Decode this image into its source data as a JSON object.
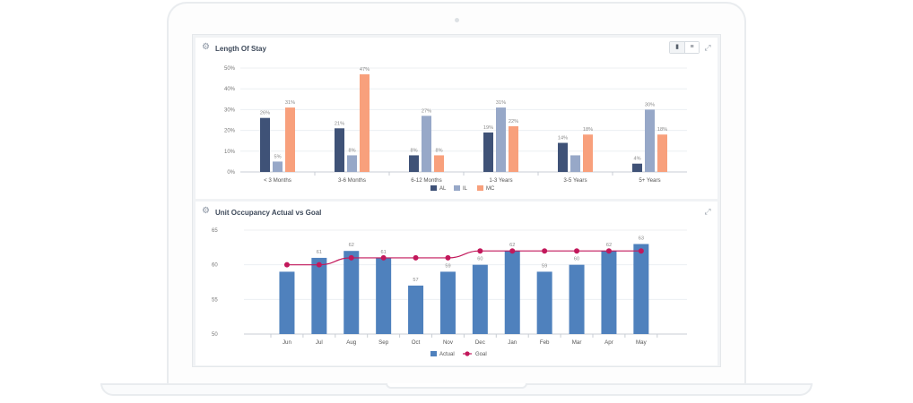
{
  "chart_data": [
    {
      "type": "bar",
      "title": "Length Of Stay",
      "categories": [
        "< 3 Months",
        "3-6 Months",
        "6-12 Months",
        "1-3 Years",
        "3-5 Years",
        "5+ Years"
      ],
      "series": [
        {
          "name": "AL",
          "values": [
            26,
            21,
            8,
            19,
            14,
            4
          ],
          "labels": [
            "26%",
            "21%",
            "8%",
            "19%",
            "14%",
            "4%"
          ],
          "color": "#3f5277"
        },
        {
          "name": "IL",
          "values": [
            5,
            8,
            27,
            31,
            8,
            30
          ],
          "labels": [
            "5%",
            "8%",
            "27%",
            "31%",
            "",
            "30%"
          ],
          "color": "#97a8c8"
        },
        {
          "name": "MC",
          "values": [
            31,
            47,
            8,
            22,
            18,
            18
          ],
          "labels": [
            "31%",
            "47%",
            "8%",
            "22%",
            "18%",
            "18%"
          ],
          "color": "#f8a07c"
        }
      ],
      "ylim": [
        0,
        50
      ],
      "yticks": [
        "0%",
        "10%",
        "20%",
        "30%",
        "40%",
        "50%"
      ],
      "grid": true,
      "legend": "bottom"
    },
    {
      "type": "bar",
      "title": "Unit Occupancy Actual vs Goal",
      "categories": [
        "Jun",
        "Jul",
        "Aug",
        "Sep",
        "Oct",
        "Nov",
        "Dec",
        "Jan",
        "Feb",
        "Mar",
        "Apr",
        "May"
      ],
      "series": [
        {
          "name": "Actual",
          "type": "bar",
          "values": [
            59,
            61,
            62,
            61,
            57,
            59,
            60,
            62,
            59,
            60,
            62,
            63
          ],
          "labels": [
            "",
            "61",
            "62",
            "61",
            "57",
            "59",
            "60",
            "62",
            "59",
            "60",
            "62",
            "63"
          ],
          "color": "#4f81bd"
        },
        {
          "name": "Goal",
          "type": "line",
          "values": [
            60,
            60,
            61,
            61,
            61,
            61,
            62,
            62,
            62,
            62,
            62,
            62
          ],
          "color": "#c2185b"
        }
      ],
      "ylim": [
        50,
        65
      ],
      "yticks": [
        "50",
        "55",
        "60",
        "65"
      ],
      "grid": true,
      "legend": "bottom"
    }
  ],
  "ui": {
    "expand_icon": "expand-icon",
    "gear_icon": "gear-icon",
    "toggle_bar": "bar-chart-icon",
    "toggle_table": "table-icon"
  }
}
